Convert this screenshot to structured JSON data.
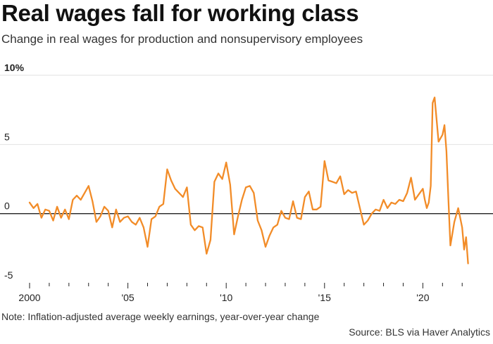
{
  "title": "Real wages fall for working class",
  "subtitle": "Change in real wages for production and nonsupervisory employees",
  "note": "Note: Inflation-adjusted average weekly earnings, year-over-year change",
  "source": "Source: BLS via Haver Analytics",
  "colors": {
    "line": "#f28c28",
    "grid": "#e2e2e2",
    "zero": "#222222"
  },
  "chart_data": {
    "type": "line",
    "title": "Real wages fall for working class",
    "xlabel": "",
    "ylabel": "",
    "xlim": [
      2000,
      2022.35
    ],
    "ylim": [
      -5,
      10
    ],
    "y_ticks": [
      10,
      5,
      0,
      -5
    ],
    "y_tick_labels": [
      "10%",
      "5",
      "0",
      "-5"
    ],
    "x_ticks": [
      2000,
      2005,
      2010,
      2015,
      2020
    ],
    "x_tick_labels": [
      "2000",
      "'05",
      "'10",
      "'15",
      "'20"
    ],
    "grid": true,
    "series": [
      {
        "x": [
          2000.0,
          2000.2,
          2000.4,
          2000.6,
          2000.8,
          2001.0,
          2001.2,
          2001.4,
          2001.6,
          2001.8,
          2002.0,
          2002.2,
          2002.4,
          2002.6,
          2002.8,
          2003.0,
          2003.2,
          2003.4,
          2003.6,
          2003.8,
          2004.0,
          2004.2,
          2004.4,
          2004.6,
          2004.8,
          2005.0,
          2005.2,
          2005.4,
          2005.6,
          2005.8,
          2006.0,
          2006.2,
          2006.4,
          2006.6,
          2006.8,
          2007.0,
          2007.2,
          2007.4,
          2007.6,
          2007.8,
          2008.0,
          2008.2,
          2008.4,
          2008.6,
          2008.8,
          2009.0,
          2009.2,
          2009.4,
          2009.6,
          2009.8,
          2010.0,
          2010.2,
          2010.4,
          2010.6,
          2010.8,
          2011.0,
          2011.2,
          2011.4,
          2011.6,
          2011.8,
          2012.0,
          2012.2,
          2012.4,
          2012.6,
          2012.8,
          2013.0,
          2013.2,
          2013.4,
          2013.6,
          2013.8,
          2014.0,
          2014.2,
          2014.4,
          2014.6,
          2014.8,
          2015.0,
          2015.2,
          2015.4,
          2015.6,
          2015.8,
          2016.0,
          2016.2,
          2016.4,
          2016.6,
          2016.8,
          2017.0,
          2017.2,
          2017.4,
          2017.6,
          2017.8,
          2018.0,
          2018.2,
          2018.4,
          2018.6,
          2018.8,
          2019.0,
          2019.2,
          2019.4,
          2019.6,
          2019.8,
          2020.0,
          2020.1,
          2020.2,
          2020.3,
          2020.4,
          2020.5,
          2020.6,
          2020.8,
          2021.0,
          2021.1,
          2021.2,
          2021.3,
          2021.4,
          2021.6,
          2021.8,
          2022.0,
          2022.1,
          2022.2,
          2022.3
        ],
        "values": [
          0.8,
          0.4,
          0.7,
          -0.3,
          0.3,
          0.2,
          -0.5,
          0.5,
          -0.3,
          0.3,
          -0.4,
          1.0,
          1.3,
          1.0,
          1.5,
          2.0,
          0.9,
          -0.6,
          -0.2,
          0.5,
          0.2,
          -1.0,
          0.3,
          -0.6,
          -0.3,
          -0.2,
          -0.6,
          -0.8,
          -0.3,
          -1.0,
          -2.4,
          -0.4,
          -0.2,
          0.5,
          0.7,
          3.2,
          2.4,
          1.8,
          1.5,
          1.2,
          1.9,
          -0.8,
          -1.2,
          -0.9,
          -1.0,
          -2.9,
          -1.9,
          2.3,
          2.9,
          2.5,
          3.7,
          2.1,
          -1.5,
          -0.2,
          1.0,
          1.9,
          2.0,
          1.5,
          -0.5,
          -1.2,
          -2.4,
          -1.6,
          -1.0,
          -0.8,
          0.2,
          -0.3,
          -0.4,
          0.9,
          -0.3,
          -0.4,
          1.2,
          1.6,
          0.3,
          0.3,
          0.5,
          3.8,
          2.4,
          2.3,
          2.2,
          2.7,
          1.4,
          1.7,
          1.5,
          1.6,
          0.4,
          -0.8,
          -0.5,
          0.0,
          0.3,
          0.2,
          1.0,
          0.4,
          0.8,
          0.7,
          1.0,
          0.9,
          1.5,
          2.6,
          1.0,
          1.4,
          1.8,
          1.0,
          0.4,
          0.8,
          2.0,
          8.0,
          8.4,
          5.2,
          5.7,
          6.4,
          4.5,
          1.0,
          -2.3,
          -0.6,
          0.4,
          -1.0,
          -2.6,
          -1.7,
          -3.6
        ]
      }
    ]
  }
}
